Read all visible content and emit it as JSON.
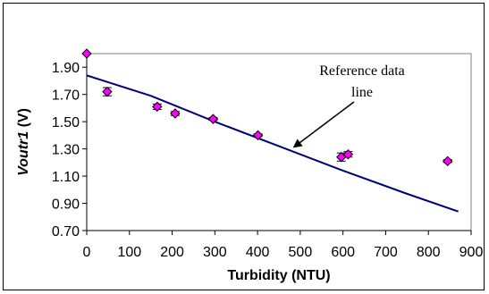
{
  "chart_data": {
    "type": "scatter",
    "xlabel": "Turbidity (NTU)",
    "ylabel": "Voutr1 (V)",
    "xlim": [
      0,
      900
    ],
    "ylim": [
      0.7,
      2.0
    ],
    "xticks": [
      0,
      100,
      200,
      300,
      400,
      500,
      600,
      700,
      800,
      900
    ],
    "yticks": [
      "0.70",
      "0.90",
      "1.10",
      "1.30",
      "1.50",
      "1.70",
      "1.90"
    ],
    "ytick_values": [
      0.7,
      0.9,
      1.1,
      1.3,
      1.5,
      1.7,
      1.9
    ],
    "grid": "none",
    "legend": "none",
    "series": [
      {
        "type": "scatter",
        "marker": "diamond",
        "color": "#ff00ff",
        "x": [
          0,
          48,
          165,
          207,
          296,
          401,
          596,
          612,
          845
        ],
        "y": [
          2.0,
          1.72,
          1.61,
          1.56,
          1.52,
          1.4,
          1.24,
          1.26,
          1.21
        ],
        "error": [
          0.0,
          0.03,
          0.02,
          0.015,
          0.01,
          0.01,
          0.03,
          0.02,
          0.01
        ]
      },
      {
        "type": "line",
        "color": "#000080",
        "x": [
          0,
          150,
          300,
          450,
          600,
          750,
          870
        ],
        "y": [
          1.84,
          1.69,
          1.5,
          1.32,
          1.14,
          0.97,
          0.84
        ]
      }
    ],
    "annotations": [
      {
        "text_lines": [
          "Reference data",
          "line"
        ],
        "arrow_to": {
          "x": 505,
          "y": 1.25
        }
      }
    ]
  }
}
